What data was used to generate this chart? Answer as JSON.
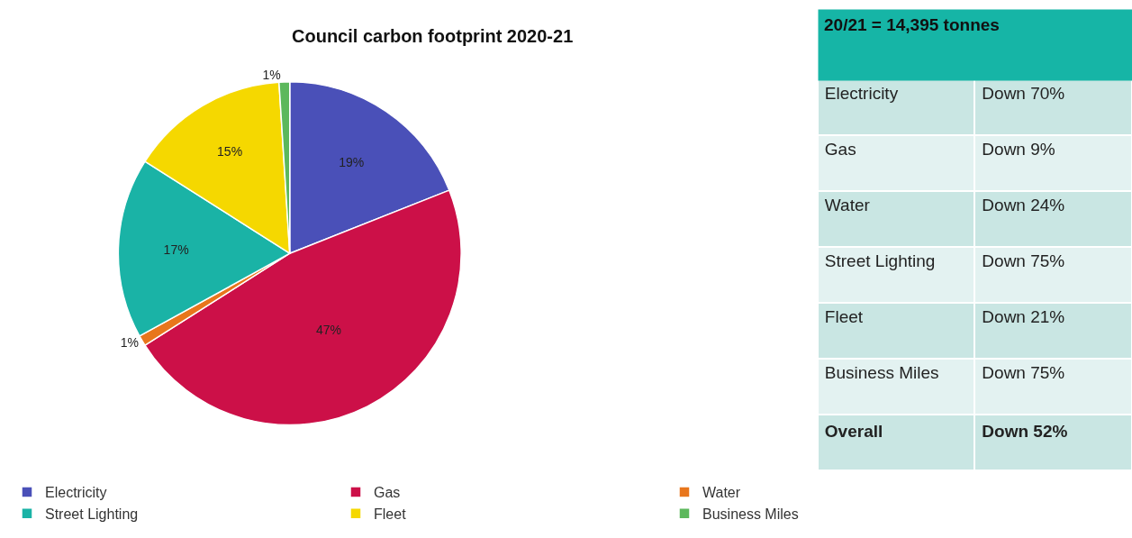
{
  "chart_data": [
    {
      "type": "pie",
      "title": "Council carbon footprint 2020-21",
      "categories": [
        "Electricity",
        "Gas",
        "Water",
        "Street Lighting",
        "Fleet",
        "Business Miles"
      ],
      "values": [
        19,
        47,
        1,
        17,
        15,
        1
      ],
      "colors": [
        "#4a50b8",
        "#cc1048",
        "#e8761c",
        "#1ab3a6",
        "#f5d800",
        "#5cb85c"
      ],
      "value_labels": [
        "19%",
        "47%",
        "1%",
        "17%",
        "15%",
        "1%"
      ],
      "legend": "bottom"
    },
    {
      "type": "other",
      "title": "20/21 = 14,395 tonnes",
      "annotations": [
        "Electricity",
        "Down 70%",
        "Gas",
        "Down 9%",
        "Water",
        "Down 24%",
        "Street Lighting",
        "Down 75%",
        "Fleet",
        "Down 21%",
        "Business Miles",
        "Down 75%",
        "Overall",
        "Down 52%"
      ]
    }
  ]
}
